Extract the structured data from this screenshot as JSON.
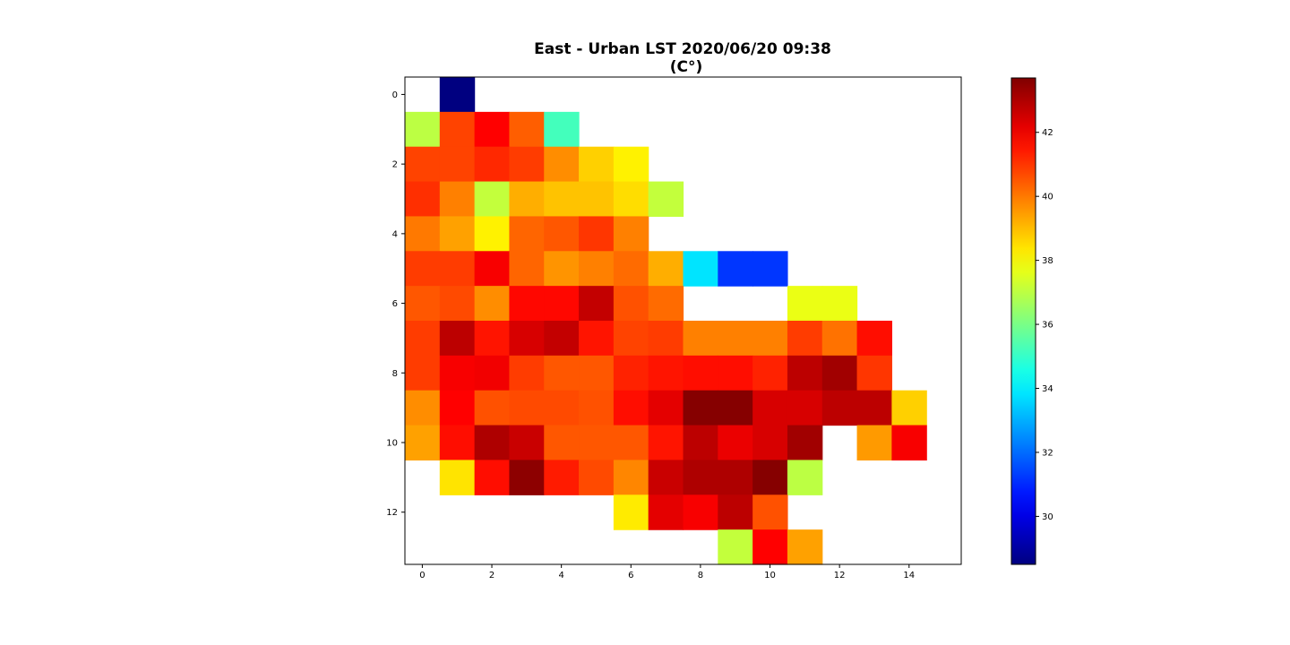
{
  "chart_data": {
    "type": "heatmap",
    "title_lines": [
      "East - Urban LST 2020/06/20 09:38",
      "(C°)"
    ],
    "xlabel": "",
    "ylabel": "",
    "rows": 14,
    "cols": 16,
    "x_ticks": [
      0,
      2,
      4,
      6,
      8,
      10,
      12,
      14
    ],
    "y_ticks": [
      0,
      2,
      4,
      6,
      8,
      10,
      12
    ],
    "x_tick_labels": [
      "0",
      "2",
      "4",
      "6",
      "8",
      "10",
      "12",
      "14"
    ],
    "y_tick_labels": [
      "0",
      "2",
      "4",
      "6",
      "8",
      "10",
      "12"
    ],
    "xlim": [
      -0.5,
      15.5
    ],
    "ylim": [
      13.5,
      -0.5
    ],
    "grid": false,
    "colormap": "jet",
    "colorbar": {
      "vmin": 28.5,
      "vmax": 43.7,
      "ticks": [
        30,
        32,
        34,
        36,
        38,
        40,
        42
      ],
      "tick_labels": [
        "30",
        "32",
        "34",
        "36",
        "38",
        "40",
        "42"
      ],
      "position": "right"
    },
    "values": [
      [
        null,
        28.5,
        null,
        null,
        null,
        null,
        null,
        null,
        null,
        null,
        null,
        null,
        null,
        null,
        null,
        null
      ],
      [
        37.0,
        40.8,
        41.8,
        40.4,
        35.2,
        null,
        null,
        null,
        null,
        null,
        null,
        null,
        null,
        null,
        null,
        null
      ],
      [
        40.8,
        40.8,
        41.2,
        40.9,
        39.7,
        38.7,
        38.2,
        null,
        null,
        null,
        null,
        null,
        null,
        null,
        null,
        null
      ],
      [
        41.1,
        39.9,
        37.1,
        39.2,
        38.9,
        38.9,
        38.5,
        37.1,
        null,
        null,
        null,
        null,
        null,
        null,
        null,
        null
      ],
      [
        40.0,
        39.4,
        38.2,
        40.3,
        40.5,
        41.0,
        39.9,
        null,
        null,
        null,
        null,
        null,
        null,
        null,
        null,
        null
      ],
      [
        40.9,
        40.9,
        41.9,
        40.3,
        39.6,
        39.9,
        40.2,
        39.2,
        33.8,
        31.2,
        31.2,
        null,
        null,
        null,
        null,
        null
      ],
      [
        40.5,
        40.7,
        39.7,
        41.7,
        41.7,
        42.7,
        40.6,
        40.2,
        null,
        null,
        null,
        37.7,
        37.7,
        null,
        null,
        null
      ],
      [
        40.9,
        42.8,
        41.5,
        42.4,
        42.7,
        41.5,
        40.8,
        40.9,
        39.9,
        39.9,
        39.9,
        40.9,
        40.1,
        41.6,
        null,
        null
      ],
      [
        40.9,
        41.9,
        42.0,
        40.9,
        40.5,
        40.5,
        41.3,
        41.5,
        41.6,
        41.6,
        41.3,
        42.8,
        43.2,
        41.0,
        null,
        null
      ],
      [
        39.7,
        41.8,
        40.6,
        40.7,
        40.7,
        40.6,
        41.6,
        42.2,
        43.6,
        43.6,
        42.4,
        42.4,
        42.8,
        42.8,
        38.7,
        null
      ],
      [
        39.4,
        41.6,
        43.0,
        42.6,
        40.5,
        40.5,
        40.5,
        41.5,
        42.8,
        42.1,
        42.4,
        43.2,
        null,
        39.5,
        41.9,
        null
      ],
      [
        null,
        38.4,
        41.6,
        43.5,
        41.4,
        40.7,
        39.8,
        42.6,
        43.0,
        43.0,
        43.6,
        37.0,
        null,
        null,
        null,
        null
      ],
      [
        null,
        null,
        null,
        null,
        null,
        null,
        38.3,
        42.2,
        41.9,
        42.8,
        40.6,
        null,
        null,
        null,
        null,
        null
      ],
      [
        null,
        null,
        null,
        null,
        null,
        null,
        null,
        null,
        null,
        37.1,
        41.8,
        39.4,
        null,
        null,
        null,
        null
      ]
    ]
  }
}
